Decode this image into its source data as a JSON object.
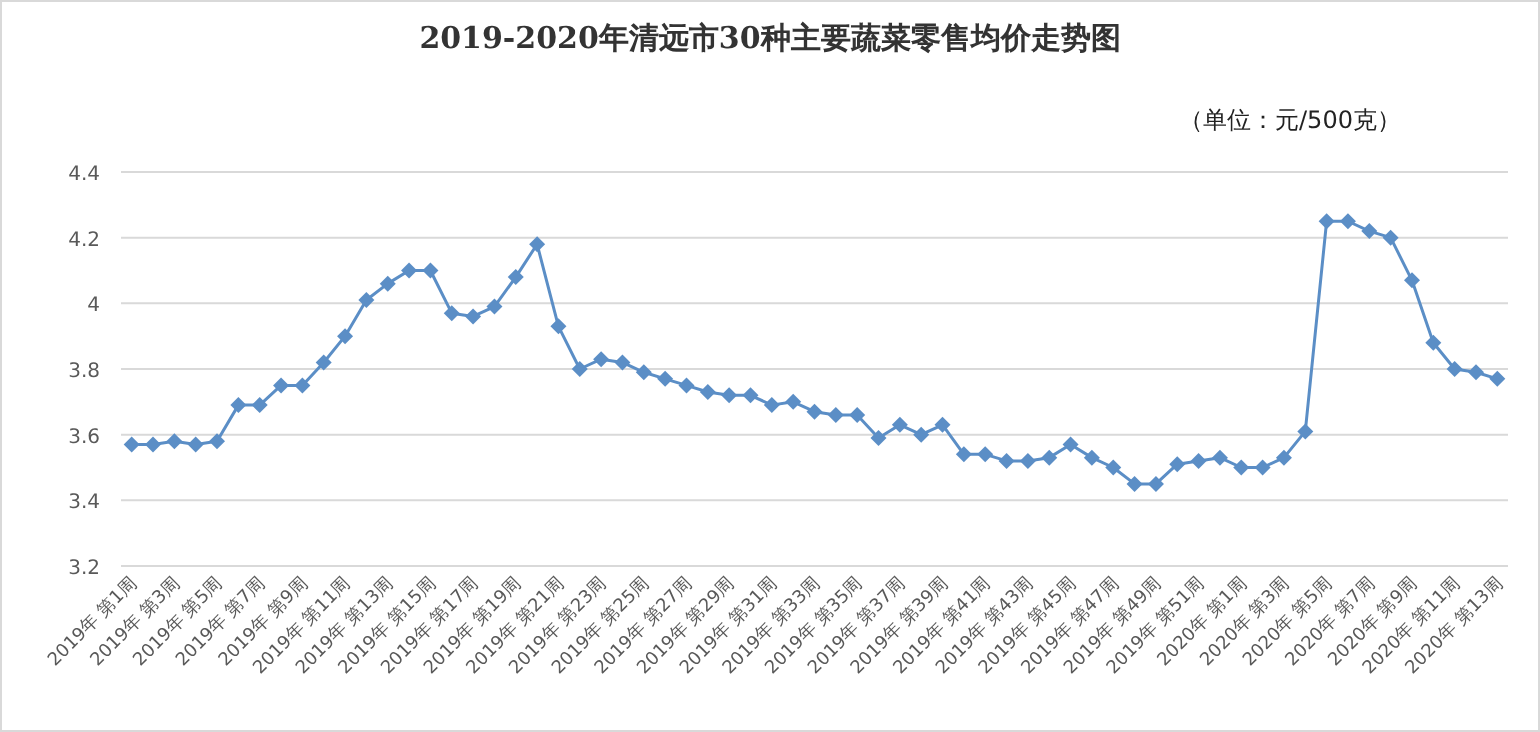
{
  "chart_data": {
    "type": "line",
    "title": "2019-2020年清远市30种主要蔬菜零售均价走势图",
    "annotations": [
      "（单位：元/500克）"
    ],
    "categories": [
      "2019年 第1周",
      null,
      "2019年 第3周",
      null,
      "2019年 第5周",
      null,
      "2019年 第7周",
      null,
      "2019年 第9周",
      null,
      "2019年 第11周",
      null,
      "2019年 第13周",
      null,
      "2019年 第15周",
      null,
      "2019年 第17周",
      null,
      "2019年 第19周",
      null,
      "2019年 第21周",
      null,
      "2019年 第23周",
      null,
      "2019年 第25周",
      null,
      "2019年 第27周",
      null,
      "2019年 第29周",
      null,
      "2019年 第31周",
      null,
      "2019年 第33周",
      null,
      "2019年 第35周",
      null,
      "2019年 第37周",
      null,
      "2019年 第39周",
      null,
      "2019年 第41周",
      null,
      "2019年 第43周",
      null,
      "2019年 第45周",
      null,
      "2019年 第47周",
      null,
      "2019年 第49周",
      null,
      "2019年 第51周",
      null,
      "2020年 第1周",
      null,
      "2020年 第3周",
      null,
      "2020年 第5周",
      null,
      "2020年 第7周",
      null,
      "2020年 第9周",
      null,
      "2020年 第11周",
      null,
      "2020年 第13周"
    ],
    "series": [
      {
        "color": "#5b8ec6",
        "values": [
          3.57,
          3.57,
          3.58,
          3.57,
          3.58,
          3.69,
          3.69,
          3.75,
          3.75,
          3.82,
          3.9,
          4.01,
          4.06,
          4.1,
          4.1,
          3.97,
          3.96,
          3.99,
          4.08,
          4.18,
          3.93,
          3.8,
          3.83,
          3.82,
          3.79,
          3.77,
          3.75,
          3.73,
          3.72,
          3.72,
          3.69,
          3.7,
          3.67,
          3.66,
          3.66,
          3.59,
          3.63,
          3.6,
          3.63,
          3.54,
          3.54,
          3.52,
          3.52,
          3.53,
          3.57,
          3.53,
          3.5,
          3.45,
          3.45,
          3.51,
          3.52,
          3.53,
          3.5,
          3.5,
          3.53,
          3.61,
          4.25,
          4.25,
          4.22,
          4.2,
          4.07,
          3.88,
          3.8,
          3.79,
          3.77
        ]
      }
    ],
    "ylim": [
      3.2,
      4.4
    ],
    "yticks": [
      3.2,
      3.4,
      3.6,
      3.8,
      4,
      4.2,
      4.4
    ],
    "grid": "y",
    "marker": "diamond",
    "line_style": "solid"
  }
}
